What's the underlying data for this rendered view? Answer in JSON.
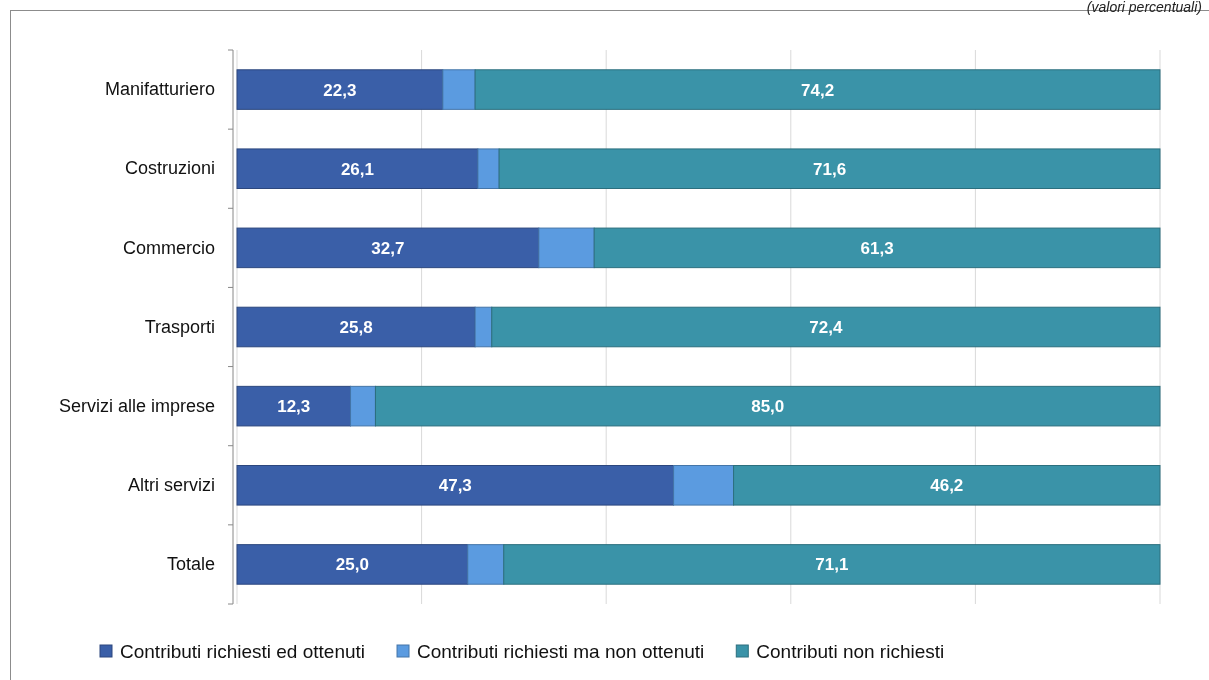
{
  "chart_data": {
    "type": "bar",
    "orientation": "horizontal",
    "stacked": true,
    "annotations": [
      "(valori percentuali)"
    ],
    "categories": [
      "Manifatturiero",
      "Costruzioni",
      "Commercio",
      "Trasporti",
      "Servizi alle imprese",
      "Altri servizi",
      "Totale"
    ],
    "series": [
      {
        "name": "Contributi richiesti ed ottenuti",
        "color": "#3a5fa8",
        "values": [
          22.3,
          26.1,
          32.7,
          25.8,
          12.3,
          47.3,
          25.0
        ],
        "value_labels": [
          "22,3",
          "26,1",
          "32,7",
          "25,8",
          "12,3",
          "47,3",
          "25,0"
        ]
      },
      {
        "name": "Contributi richiesti ma non ottenuti",
        "color": "#5b9be0",
        "values": [
          3.5,
          2.3,
          6.0,
          1.8,
          2.7,
          6.5,
          3.9
        ]
      },
      {
        "name": "Contributi non richiesti",
        "color": "#3a93a8",
        "values": [
          74.2,
          71.6,
          61.3,
          72.4,
          85.0,
          46.2,
          71.1
        ],
        "value_labels": [
          "74,2",
          "71,6",
          "61,3",
          "72,4",
          "85,0",
          "46,2",
          "71,1"
        ]
      }
    ],
    "xlim": [
      0,
      100
    ],
    "xticks": [
      {
        "value": 0,
        "label": null
      },
      {
        "value": 20,
        "label": null
      },
      {
        "value": 40,
        "label": null
      },
      {
        "value": 60,
        "label": null
      },
      {
        "value": 80,
        "label": null
      },
      {
        "value": 100,
        "label": null
      }
    ],
    "grid": "x",
    "tick_labels": "y",
    "legend": "bottom"
  }
}
